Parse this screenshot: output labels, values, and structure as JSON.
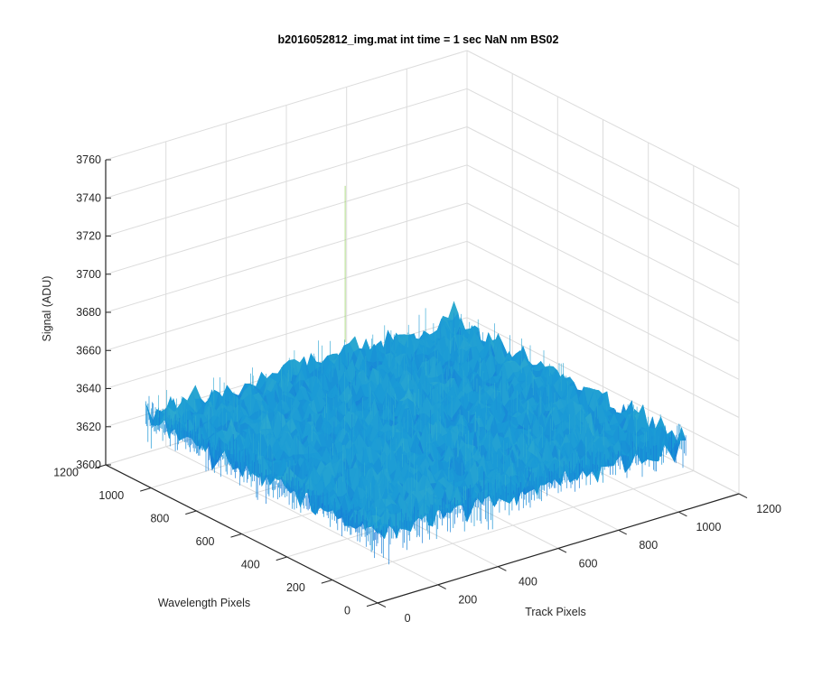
{
  "chart_data": {
    "type": "surface",
    "title": "b2016052812_img.mat int time = 1 sec  NaN nm BS02",
    "xlabel": "Track Pixels",
    "ylabel": "Wavelength Pixels",
    "zlabel": "Signal (ADU)",
    "xlim": [
      0,
      1200
    ],
    "ylim": [
      0,
      1200
    ],
    "zlim": [
      3600,
      3760
    ],
    "x_ticks": [
      "0",
      "200",
      "400",
      "600",
      "800",
      "1000",
      "1200"
    ],
    "y_ticks": [
      "0",
      "200",
      "400",
      "600",
      "800",
      "1000",
      "1200"
    ],
    "z_ticks": [
      "3600",
      "3620",
      "3640",
      "3660",
      "3680",
      "3700",
      "3720",
      "3740",
      "3760"
    ],
    "data_extent": {
      "x": [
        1,
        1024
      ],
      "y": [
        1,
        1024
      ]
    },
    "surface_mean": 3636,
    "noise_range": [
      3612,
      3665
    ],
    "grid": true,
    "colormap": {
      "low": "#1565d8",
      "mid": "#1a9ad6",
      "high": "#3fb8c8",
      "peak": "#9ed36b"
    },
    "colors": {
      "grid": "#dcdcdc",
      "axis": "#262626",
      "background": "#ffffff"
    }
  }
}
